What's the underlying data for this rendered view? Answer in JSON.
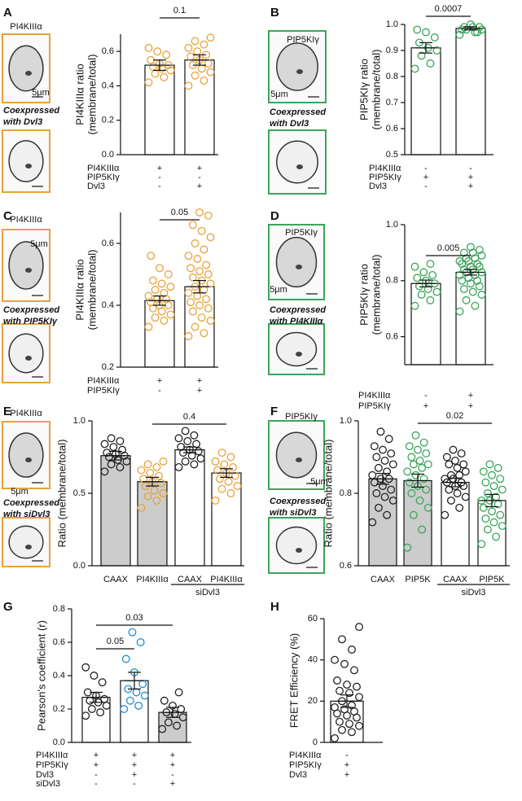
{
  "chart_data": [
    {
      "type": "bar",
      "panel": "A",
      "image": {
        "title": "PI4KIIIα",
        "scale": "5μm",
        "caption": [
          "Coexpressed",
          "with Dvl3"
        ],
        "border": "#e8a23a"
      },
      "ylabel": [
        "PI4KIIIα ratio",
        "(membrane/total)"
      ],
      "ylim": [
        0,
        0.7
      ],
      "yticks": [
        {
          "value": 0,
          "label": "0.0"
        },
        0.2,
        0.4,
        0.6
      ],
      "values": [
        0.52,
        0.55
      ],
      "errors": [
        0.03,
        0.03
      ],
      "bar_colors": [
        "#ffffff",
        "#ffffff"
      ],
      "point_colors": [
        "#e8a23a",
        "#e8a23a"
      ],
      "points": [
        [
          0.42,
          0.45,
          0.47,
          0.49,
          0.5,
          0.51,
          0.52,
          0.53,
          0.55,
          0.58,
          0.6,
          0.62
        ],
        [
          0.4,
          0.43,
          0.46,
          0.48,
          0.5,
          0.52,
          0.53,
          0.55,
          0.57,
          0.58,
          0.6,
          0.62,
          0.64,
          0.66,
          0.68
        ]
      ],
      "significance": [
        {
          "between": [
            0,
            1
          ],
          "label": "0.1"
        }
      ],
      "conditions": [
        {
          "name": "PI4KIIIα",
          "signs": [
            "+",
            "+"
          ]
        },
        {
          "name": "PIP5KIγ",
          "signs": [
            "-",
            "-"
          ]
        },
        {
          "name": "Dvl3",
          "signs": [
            "-",
            "+"
          ]
        }
      ]
    },
    {
      "type": "bar",
      "panel": "B",
      "image": {
        "title": "PIP5KIγ",
        "scale": "5μm",
        "caption": [
          "Coexpressed",
          "with Dvl3"
        ],
        "border": "#3aa55a"
      },
      "ylabel": [
        "PIP5KIγ ratio",
        "(membrane/total)"
      ],
      "ylim": [
        0.5,
        1.0
      ],
      "yticks": [
        0.5,
        0.6,
        0.7,
        0.8,
        0.9,
        {
          "value": 1,
          "label": "1.0"
        }
      ],
      "values": [
        0.91,
        0.985
      ],
      "errors": [
        0.02,
        0.006
      ],
      "bar_colors": [
        "#ffffff",
        "#ffffff"
      ],
      "point_colors": [
        "#3aa55a",
        "#3aa55a"
      ],
      "points": [
        [
          0.83,
          0.85,
          0.88,
          0.9,
          0.91,
          0.93,
          0.95,
          0.97,
          0.98
        ],
        [
          0.96,
          0.97,
          0.98,
          0.98,
          0.99,
          0.99,
          0.99,
          1.0,
          0.98,
          0.97
        ]
      ],
      "significance": [
        {
          "between": [
            0,
            1
          ],
          "label": "0.0007"
        }
      ],
      "conditions": [
        {
          "name": "PI4KIIIα",
          "signs": [
            "-",
            "-"
          ]
        },
        {
          "name": "PIP5KIγ",
          "signs": [
            "+",
            "+"
          ]
        },
        {
          "name": "Dvl3",
          "signs": [
            "-",
            "+"
          ]
        }
      ]
    },
    {
      "type": "bar",
      "panel": "C",
      "image": {
        "title": "PI4KIIIα",
        "scale": "5μm",
        "caption": [
          "Coexpressed",
          "with PIP5KIγ"
        ],
        "border": "#e8a23a"
      },
      "ylabel": [
        "PI4KIIIα ratio",
        "(membrane/total)"
      ],
      "ylim": [
        0.2,
        0.7
      ],
      "yticks": [
        0.2,
        0.4,
        0.6
      ],
      "values": [
        0.415,
        0.46
      ],
      "errors": [
        0.015,
        0.02
      ],
      "bar_colors": [
        "#ffffff",
        "#ffffff"
      ],
      "point_colors": [
        "#e8a23a",
        "#e8a23a"
      ],
      "points": [
        [
          0.33,
          0.35,
          0.36,
          0.37,
          0.38,
          0.39,
          0.4,
          0.4,
          0.41,
          0.42,
          0.42,
          0.43,
          0.44,
          0.45,
          0.46,
          0.47,
          0.48,
          0.5,
          0.52,
          0.56
        ],
        [
          0.3,
          0.31,
          0.33,
          0.35,
          0.36,
          0.38,
          0.39,
          0.4,
          0.41,
          0.42,
          0.43,
          0.44,
          0.45,
          0.46,
          0.47,
          0.48,
          0.49,
          0.5,
          0.51,
          0.52,
          0.53,
          0.55,
          0.56,
          0.58,
          0.6,
          0.62,
          0.64,
          0.66,
          0.69,
          0.7
        ]
      ],
      "significance": [
        {
          "between": [
            0,
            1
          ],
          "label": "0.05"
        }
      ],
      "conditions": [
        {
          "name": "PI4KIIIα",
          "signs": [
            "+",
            "+"
          ]
        },
        {
          "name": "PIP5KIγ",
          "signs": [
            "-",
            "+"
          ]
        }
      ]
    },
    {
      "type": "bar",
      "panel": "D",
      "image": {
        "title": "PIP5KIγ",
        "scale": "5μm",
        "caption": [
          "Coexpressed",
          "with PI4KIIIα"
        ],
        "border": "#3aa55a"
      },
      "ylabel": [
        "PIP5KIγ ratio",
        "(membrane/total)"
      ],
      "ylim": [
        0.5,
        1.0
      ],
      "yticks": [
        0.6,
        0.8,
        {
          "value": 1,
          "label": "1.0"
        }
      ],
      "values": [
        0.79,
        0.83
      ],
      "errors": [
        0.012,
        0.01
      ],
      "bar_colors": [
        "#ffffff",
        "#ffffff"
      ],
      "point_colors": [
        "#3aa55a",
        "#3aa55a"
      ],
      "points": [
        [
          0.71,
          0.73,
          0.75,
          0.76,
          0.77,
          0.78,
          0.79,
          0.8,
          0.81,
          0.82,
          0.83,
          0.85,
          0.86
        ],
        [
          0.69,
          0.71,
          0.73,
          0.75,
          0.76,
          0.77,
          0.78,
          0.79,
          0.8,
          0.8,
          0.81,
          0.82,
          0.82,
          0.83,
          0.83,
          0.84,
          0.84,
          0.85,
          0.85,
          0.86,
          0.86,
          0.87,
          0.87,
          0.88,
          0.88,
          0.89,
          0.9,
          0.9,
          0.91,
          0.92
        ]
      ],
      "significance": [
        {
          "between": [
            0,
            1
          ],
          "label": "0.005"
        }
      ],
      "conditions": [
        {
          "name": "PI4KIIIα",
          "signs": [
            "-",
            "+"
          ]
        },
        {
          "name": "PIP5KIγ",
          "signs": [
            "+",
            "+"
          ]
        }
      ]
    },
    {
      "type": "bar",
      "panel": "E",
      "image": {
        "title": "PI4KIIIα",
        "scale": "5μm",
        "caption": [
          "Coexpressed",
          "with siDvl3"
        ],
        "border": "#e8a23a"
      },
      "ylabel": [
        "Ratio (membrane/total)"
      ],
      "ylim": [
        0,
        1.0
      ],
      "yticks": [
        {
          "value": 0,
          "label": "0.0"
        },
        0.5,
        {
          "value": 1,
          "label": "1.0"
        }
      ],
      "categories": [
        "CAAX",
        "PI4KIIIα",
        "CAAX",
        "PI4KIIIα"
      ],
      "group_label": "siDvl3",
      "values": [
        0.76,
        0.58,
        0.8,
        0.64
      ],
      "errors": [
        0.03,
        0.03,
        0.02,
        0.03
      ],
      "bar_colors": [
        "#cccccc",
        "#cccccc",
        "#ffffff",
        "#ffffff"
      ],
      "point_colors": [
        "#222222",
        "#e8a23a",
        "#222222",
        "#e8a23a"
      ],
      "points": [
        [
          0.65,
          0.68,
          0.7,
          0.72,
          0.73,
          0.75,
          0.76,
          0.77,
          0.78,
          0.8,
          0.82,
          0.84,
          0.86,
          0.88
        ],
        [
          0.4,
          0.45,
          0.48,
          0.5,
          0.52,
          0.55,
          0.57,
          0.58,
          0.6,
          0.62,
          0.64,
          0.66,
          0.68,
          0.7,
          0.72
        ],
        [
          0.68,
          0.7,
          0.72,
          0.74,
          0.76,
          0.78,
          0.79,
          0.8,
          0.82,
          0.84,
          0.86,
          0.88,
          0.9,
          0.93
        ],
        [
          0.45,
          0.5,
          0.53,
          0.55,
          0.58,
          0.6,
          0.62,
          0.64,
          0.66,
          0.68,
          0.7,
          0.72,
          0.75,
          0.78
        ]
      ],
      "significance": [
        {
          "between": [
            1,
            3
          ],
          "label": "0.4"
        }
      ]
    },
    {
      "type": "bar",
      "panel": "F",
      "image": {
        "title": "PIP5KIγ",
        "scale": "5μm",
        "caption": [
          "Coexpressed",
          "with siDvl3"
        ],
        "border": "#3aa55a"
      },
      "ylabel": [
        "Ratio (membrane/total)"
      ],
      "ylim": [
        0.6,
        1.0
      ],
      "yticks": [
        0.6,
        0.8,
        {
          "value": 1,
          "label": "1.0"
        }
      ],
      "categories": [
        "CAAX",
        "PIP5K",
        "CAAX",
        "PIP5K"
      ],
      "group_label": "siDvl3",
      "values": [
        0.84,
        0.835,
        0.83,
        0.78
      ],
      "errors": [
        0.015,
        0.018,
        0.012,
        0.017
      ],
      "bar_colors": [
        "#cccccc",
        "#cccccc",
        "#ffffff",
        "#ffffff"
      ],
      "point_colors": [
        "#222222",
        "#3aa55a",
        "#222222",
        "#3aa55a"
      ],
      "points": [
        [
          0.72,
          0.74,
          0.76,
          0.78,
          0.79,
          0.8,
          0.81,
          0.82,
          0.83,
          0.84,
          0.84,
          0.85,
          0.86,
          0.87,
          0.88,
          0.89,
          0.9,
          0.91,
          0.92,
          0.93,
          0.95,
          0.97
        ],
        [
          0.65,
          0.7,
          0.74,
          0.76,
          0.78,
          0.8,
          0.81,
          0.82,
          0.83,
          0.84,
          0.85,
          0.86,
          0.87,
          0.88,
          0.88,
          0.89,
          0.9,
          0.91,
          0.92,
          0.93,
          0.94,
          0.96
        ],
        [
          0.74,
          0.76,
          0.78,
          0.79,
          0.8,
          0.81,
          0.82,
          0.82,
          0.83,
          0.83,
          0.84,
          0.84,
          0.85,
          0.85,
          0.86,
          0.87,
          0.88,
          0.88,
          0.89,
          0.9,
          0.91,
          0.92
        ],
        [
          0.66,
          0.68,
          0.7,
          0.71,
          0.72,
          0.73,
          0.74,
          0.75,
          0.76,
          0.77,
          0.78,
          0.78,
          0.79,
          0.8,
          0.81,
          0.82,
          0.83,
          0.84,
          0.85,
          0.86,
          0.87,
          0.88
        ]
      ],
      "significance": [
        {
          "between": [
            1,
            3
          ],
          "label": "0.02"
        }
      ]
    },
    {
      "type": "bar",
      "panel": "G",
      "ylabel": [
        "Pearson's coefficient (r)"
      ],
      "ylim": [
        0,
        0.8
      ],
      "yticks": [
        {
          "value": 0,
          "label": "0.0"
        },
        0.2,
        0.4,
        0.6,
        0.8
      ],
      "values": [
        0.27,
        0.37,
        0.18
      ],
      "errors": [
        0.03,
        0.05,
        0.03
      ],
      "bar_colors": [
        "#ffffff",
        "#ffffff",
        "#cccccc"
      ],
      "point_colors": [
        "#222222",
        "#1f8fd6",
        "#222222"
      ],
      "points": [
        [
          0.16,
          0.18,
          0.2,
          0.22,
          0.24,
          0.25,
          0.26,
          0.28,
          0.3,
          0.36,
          0.4,
          0.45
        ],
        [
          0.2,
          0.22,
          0.25,
          0.28,
          0.3,
          0.32,
          0.35,
          0.42,
          0.5,
          0.6,
          0.66
        ],
        [
          0.08,
          0.1,
          0.12,
          0.15,
          0.17,
          0.18,
          0.2,
          0.22,
          0.25,
          0.3
        ]
      ],
      "significance": [
        {
          "between": [
            0,
            1
          ],
          "label": "0.05"
        },
        {
          "between": [
            0,
            2
          ],
          "label": "0.03"
        }
      ],
      "conditions": [
        {
          "name": "PI4KIIIα",
          "signs": [
            "+",
            "+",
            "+"
          ]
        },
        {
          "name": "PIP5KIγ",
          "signs": [
            "+",
            "+",
            "+"
          ]
        },
        {
          "name": "Dvl3",
          "signs": [
            "-",
            "+",
            "-"
          ]
        },
        {
          "name": "siDvl3",
          "signs": [
            "-",
            "-",
            "+"
          ]
        }
      ]
    },
    {
      "type": "bar",
      "panel": "H",
      "ylabel": [
        "FRET Efficiency (%)"
      ],
      "ylim": [
        0,
        60
      ],
      "yticks": [
        0,
        20,
        40,
        60
      ],
      "values": [
        20
      ],
      "errors": [
        3
      ],
      "bar_colors": [
        "#ffffff"
      ],
      "point_colors": [
        "#222222"
      ],
      "points": [
        [
          2,
          5,
          6,
          8,
          9,
          10,
          12,
          13,
          14,
          15,
          16,
          17,
          18,
          20,
          22,
          24,
          25,
          27,
          28,
          30,
          35,
          38,
          40,
          45,
          50,
          56
        ]
      ],
      "conditions": [
        {
          "name": "PI4KIIIα",
          "signs": [
            "-"
          ]
        },
        {
          "name": "PIP5KIγ",
          "signs": [
            "+"
          ]
        },
        {
          "name": "Dvl3",
          "signs": [
            "+"
          ]
        }
      ]
    }
  ]
}
